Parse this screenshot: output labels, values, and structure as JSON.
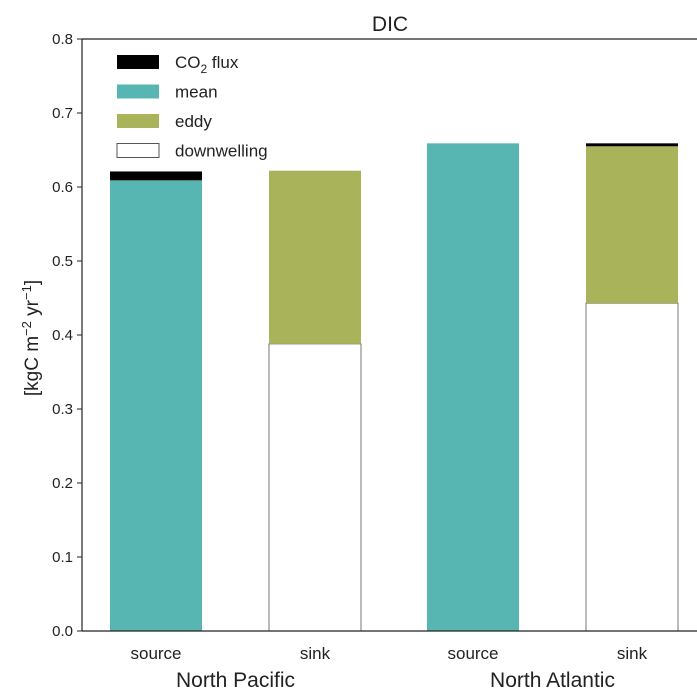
{
  "chart_data": {
    "type": "bar",
    "stacked": true,
    "title": "DIC",
    "ylabel": "[kgC m^-2 yr^-1]",
    "ylabel_parts": {
      "prefix": "[kgC m",
      "exp1": "−2",
      "mid": " yr",
      "exp2": "−1",
      "suffix": "]"
    },
    "ylim": [
      0,
      0.8
    ],
    "yticks": [
      "0.0",
      "0.1",
      "0.2",
      "0.3",
      "0.4",
      "0.5",
      "0.6",
      "0.7",
      "0.8"
    ],
    "ytick_values": [
      0,
      0.1,
      0.2,
      0.3,
      0.4,
      0.5,
      0.6,
      0.7,
      0.8
    ],
    "grid": false,
    "legend_placement": "upper-left",
    "categories": [
      "source",
      "sink",
      "source",
      "sink"
    ],
    "groups": [
      {
        "label": "North Pacific",
        "categories": [
          0,
          1
        ]
      },
      {
        "label": "North Atlantic",
        "categories": [
          2,
          3
        ]
      }
    ],
    "series": [
      {
        "name": "downwelling",
        "color": "#ffffff",
        "values": [
          0,
          0.388,
          0,
          0.443
        ]
      },
      {
        "name": "eddy",
        "color": "#a9b35a",
        "values": [
          0,
          0.234,
          0,
          0.212
        ]
      },
      {
        "name": "mean",
        "color": "#57b6b1",
        "values": [
          0.609,
          0,
          0.659,
          0
        ]
      },
      {
        "name": "CO2 flux",
        "color": "#000000",
        "values": [
          0.012,
          0,
          0,
          0.004
        ]
      }
    ],
    "legend": [
      {
        "series": "CO2 flux",
        "text": "CO",
        "sub": "2",
        "after": " flux",
        "color": "#000000"
      },
      {
        "series": "mean",
        "text": "mean",
        "sub": "",
        "after": "",
        "color": "#57b6b1"
      },
      {
        "series": "eddy",
        "text": "eddy",
        "sub": "",
        "after": "",
        "color": "#a9b35a"
      },
      {
        "series": "downwelling",
        "text": "downwelling",
        "sub": "",
        "after": "",
        "color": "#ffffff"
      }
    ]
  }
}
